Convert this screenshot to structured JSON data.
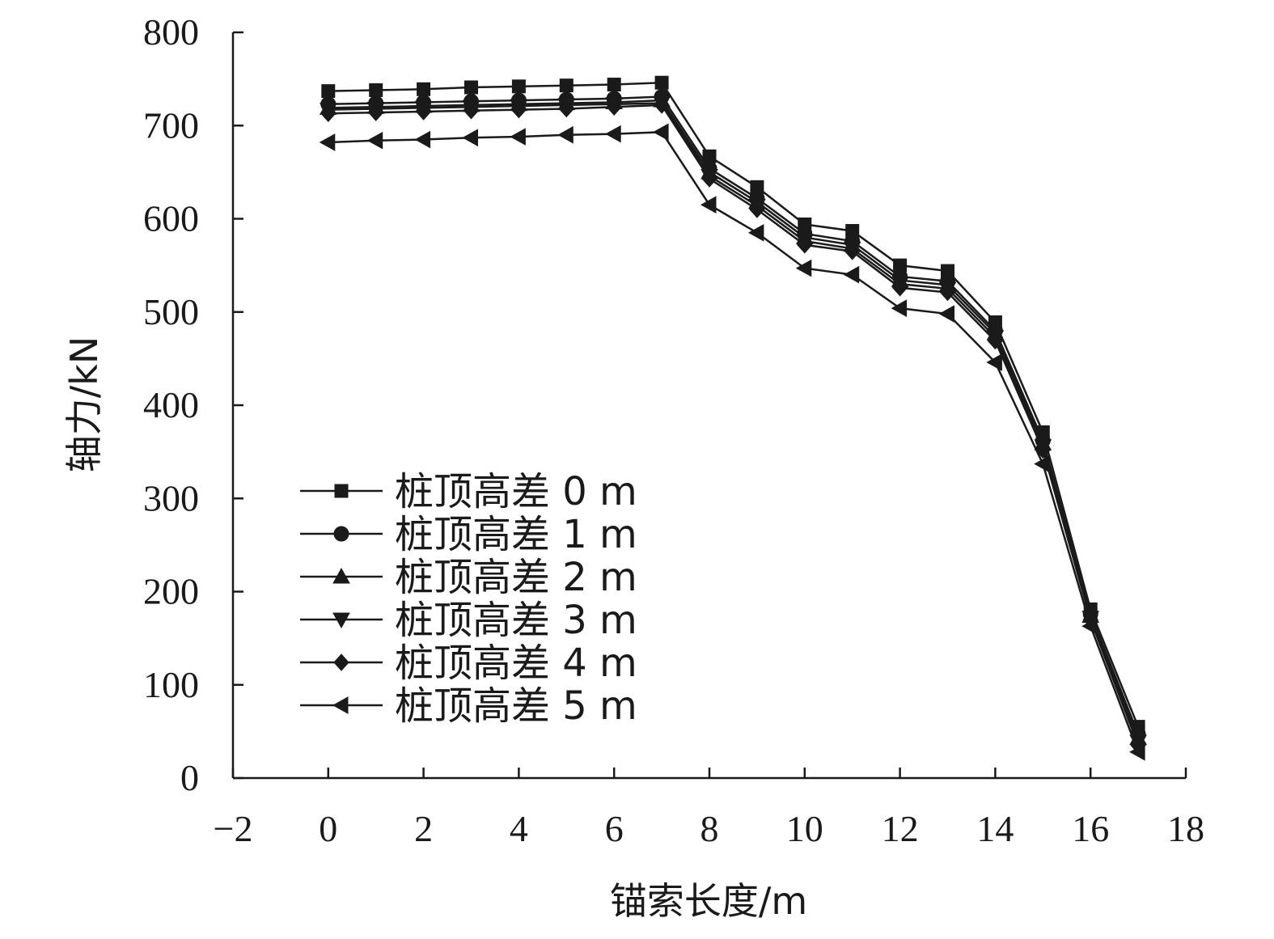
{
  "chart_data": {
    "type": "line",
    "xlabel": "锚索长度/m",
    "ylabel": "轴力/kN",
    "xlim": [
      -2,
      18
    ],
    "ylim": [
      0,
      800
    ],
    "xticks": [
      -2,
      0,
      2,
      4,
      6,
      8,
      10,
      12,
      14,
      16,
      18
    ],
    "yticks": [
      0,
      100,
      200,
      300,
      400,
      500,
      600,
      700,
      800
    ],
    "xtick_labels": [
      "−2",
      "0",
      "2",
      "4",
      "6",
      "8",
      "10",
      "12",
      "14",
      "16",
      "18"
    ],
    "ytick_labels": [
      "0",
      "100",
      "200",
      "300",
      "400",
      "500",
      "600",
      "700",
      "800"
    ],
    "legend_position": "lower-left",
    "grid": false,
    "x": [
      0,
      1,
      2,
      3,
      4,
      5,
      6,
      7,
      8,
      9,
      10,
      11,
      12,
      13,
      14,
      15,
      16,
      17
    ],
    "series": [
      {
        "name": "桩顶高差 0 m",
        "marker": "square",
        "values": [
          737,
          738,
          739,
          741,
          742,
          743,
          744,
          746,
          667,
          634,
          594,
          587,
          550,
          544,
          489,
          371,
          181,
          55
        ]
      },
      {
        "name": "桩顶高差 1 m",
        "marker": "circle",
        "values": [
          723,
          724,
          725,
          726,
          727,
          728,
          729,
          731,
          654,
          622,
          584,
          576,
          538,
          533,
          480,
          362,
          176,
          47
        ]
      },
      {
        "name": "桩顶高差 2 m",
        "marker": "triangle-up",
        "values": [
          719,
          720,
          721,
          722,
          723,
          724,
          725,
          727,
          650,
          618,
          580,
          572,
          534,
          529,
          477,
          359,
          174,
          43
        ]
      },
      {
        "name": "桩顶高差 3 m",
        "marker": "triangle-down",
        "values": [
          717,
          718,
          719,
          720,
          721,
          722,
          723,
          724,
          646,
          614,
          576,
          568,
          530,
          525,
          473,
          356,
          172,
          39
        ]
      },
      {
        "name": "桩顶高差 4 m",
        "marker": "diamond",
        "values": [
          713,
          714,
          715,
          716,
          717,
          718,
          720,
          722,
          643,
          610,
          572,
          565,
          526,
          521,
          469,
          352,
          170,
          35
        ]
      },
      {
        "name": "桩顶高差 5 m",
        "marker": "triangle-left",
        "values": [
          682,
          684,
          685,
          687,
          688,
          690,
          691,
          693,
          615,
          585,
          547,
          540,
          504,
          498,
          446,
          337,
          163,
          28
        ]
      }
    ]
  }
}
